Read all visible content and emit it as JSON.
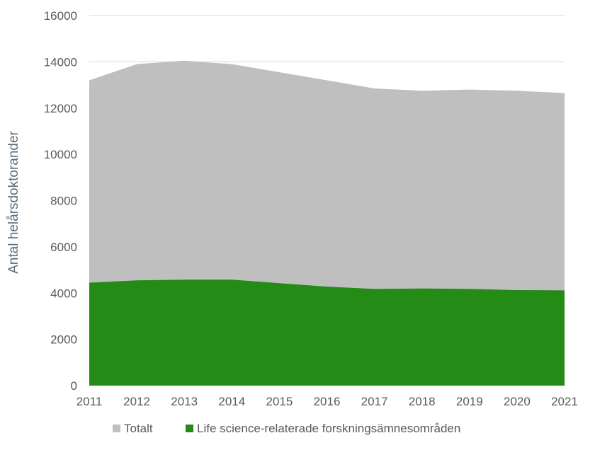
{
  "chart_data": {
    "type": "area",
    "x": [
      "2011",
      "2012",
      "2013",
      "2014",
      "2015",
      "2016",
      "2017",
      "2018",
      "2019",
      "2020",
      "2021"
    ],
    "series": [
      {
        "name": "Totalt",
        "color": "#bfbfbf",
        "values": [
          13200,
          13900,
          14050,
          13900,
          13550,
          13200,
          12850,
          12750,
          12800,
          12750,
          12650
        ]
      },
      {
        "name": "Life science-relaterade forskningsämnesområden",
        "color": "#238b16",
        "values": [
          4450,
          4550,
          4580,
          4580,
          4430,
          4280,
          4180,
          4200,
          4180,
          4130,
          4120
        ]
      }
    ],
    "ylabel": "Antal helårsdoktorander",
    "xlabel": "",
    "ylim": [
      0,
      16000
    ],
    "yticks": [
      0,
      2000,
      4000,
      6000,
      8000,
      10000,
      12000,
      14000,
      16000
    ],
    "grid": true,
    "legend": "bottom"
  }
}
